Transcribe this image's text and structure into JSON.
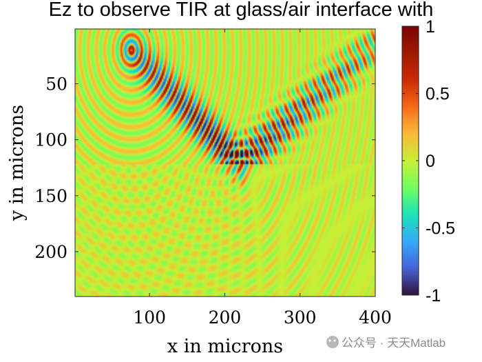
{
  "chart_data": {
    "type": "heatmap",
    "title": "Ez to observe TIR at glass/air interface with",
    "xlabel": "x in microns",
    "ylabel": "y in microns",
    "xlim": [
      1,
      400
    ],
    "ylim": [
      1,
      240
    ],
    "y_direction": "reversed",
    "xticks": [
      100,
      200,
      300,
      400
    ],
    "yticks": [
      50,
      100,
      150,
      200
    ],
    "xtick_labels": [
      "100",
      "200",
      "300",
      "400"
    ],
    "ytick_labels": [
      "50",
      "100",
      "150",
      "200"
    ],
    "colorbar": {
      "colormap": "turbo",
      "clim": [
        -1,
        1
      ],
      "ticks": [
        1,
        0.5,
        0,
        -0.5,
        -1
      ],
      "tick_labels": [
        "1",
        "0.5",
        "0",
        "-0.5",
        "-1"
      ]
    },
    "field": {
      "source_point": [
        76,
        20
      ],
      "reflection_point": [
        220,
        122
      ],
      "interface_y": 122,
      "incident_beam_end": [
        220,
        122
      ],
      "reflected_beam_end": [
        400,
        15
      ],
      "peak_value": 1,
      "background_value": 0
    }
  },
  "watermark": {
    "text": "公众号 · 天天Matlab"
  }
}
